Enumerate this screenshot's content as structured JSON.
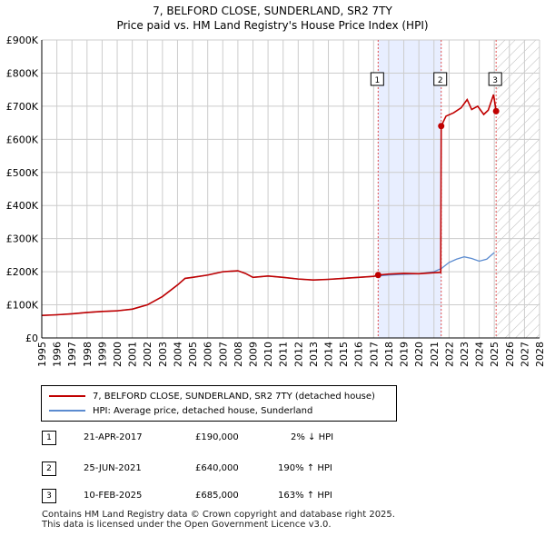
{
  "title_line1": "7, BELFORD CLOSE, SUNDERLAND, SR2 7TY",
  "title_line2": "Price paid vs. HM Land Registry's House Price Index (HPI)",
  "colors": {
    "price": "#c00000",
    "hpi": "#5b8bd0",
    "shade": "#e8eeff",
    "marker_line": "#e05050",
    "grid": "#cccccc"
  },
  "chart_data": {
    "type": "line",
    "xlim": [
      1995,
      2028
    ],
    "ylim": [
      0,
      900000
    ],
    "x_ticks": [
      "1995",
      "1996",
      "1997",
      "1998",
      "1999",
      "2000",
      "2001",
      "2002",
      "2003",
      "2004",
      "2005",
      "2006",
      "2007",
      "2008",
      "2009",
      "2010",
      "2011",
      "2012",
      "2013",
      "2014",
      "2015",
      "2016",
      "2017",
      "2018",
      "2019",
      "2020",
      "2021",
      "2022",
      "2023",
      "2024",
      "2025",
      "2026",
      "2027",
      "2028"
    ],
    "y_ticks": [
      {
        "value": 0,
        "label": "£0"
      },
      {
        "value": 100000,
        "label": "£100K"
      },
      {
        "value": 200000,
        "label": "£200K"
      },
      {
        "value": 300000,
        "label": "£300K"
      },
      {
        "value": 400000,
        "label": "£400K"
      },
      {
        "value": 500000,
        "label": "£500K"
      },
      {
        "value": 600000,
        "label": "£600K"
      },
      {
        "value": 700000,
        "label": "£700K"
      },
      {
        "value": 800000,
        "label": "£800K"
      },
      {
        "value": 900000,
        "label": "£900K"
      }
    ],
    "shaded_range": [
      2017.3,
      2021.5
    ],
    "future_hatch_from": 2025.12,
    "series": [
      {
        "name": "7, BELFORD CLOSE, SUNDERLAND, SR2 7TY (detached house)",
        "points": [
          [
            1995,
            68000
          ],
          [
            1996,
            70000
          ],
          [
            1997,
            73000
          ],
          [
            1998,
            77000
          ],
          [
            1999,
            80000
          ],
          [
            2000,
            82000
          ],
          [
            2001,
            87000
          ],
          [
            2002,
            100000
          ],
          [
            2003,
            125000
          ],
          [
            2004,
            160000
          ],
          [
            2004.5,
            180000
          ],
          [
            2005,
            183000
          ],
          [
            2006,
            190000
          ],
          [
            2007,
            200000
          ],
          [
            2008,
            203000
          ],
          [
            2008.5,
            195000
          ],
          [
            2009,
            183000
          ],
          [
            2010,
            187000
          ],
          [
            2011,
            183000
          ],
          [
            2012,
            178000
          ],
          [
            2013,
            175000
          ],
          [
            2014,
            177000
          ],
          [
            2015,
            180000
          ],
          [
            2016,
            183000
          ],
          [
            2017,
            186000
          ],
          [
            2017.3,
            190000
          ],
          [
            2018,
            193000
          ],
          [
            2019,
            195000
          ],
          [
            2020,
            194000
          ],
          [
            2021,
            197000
          ],
          [
            2021.45,
            198000
          ],
          [
            2021.48,
            640000
          ],
          [
            2021.8,
            670000
          ],
          [
            2022.3,
            680000
          ],
          [
            2022.8,
            695000
          ],
          [
            2023.2,
            720000
          ],
          [
            2023.5,
            690000
          ],
          [
            2023.9,
            700000
          ],
          [
            2024.3,
            675000
          ],
          [
            2024.6,
            688000
          ],
          [
            2024.95,
            735000
          ],
          [
            2025.12,
            685000
          ]
        ]
      },
      {
        "name": "HPI: Average price, detached house, Sunderland",
        "points": [
          [
            1995,
            68000
          ],
          [
            1996,
            70000
          ],
          [
            1997,
            73000
          ],
          [
            1998,
            77000
          ],
          [
            1999,
            80000
          ],
          [
            2000,
            82000
          ],
          [
            2001,
            87000
          ],
          [
            2002,
            100000
          ],
          [
            2003,
            125000
          ],
          [
            2004,
            160000
          ],
          [
            2004.5,
            180000
          ],
          [
            2005,
            183000
          ],
          [
            2006,
            190000
          ],
          [
            2007,
            200000
          ],
          [
            2008,
            203000
          ],
          [
            2008.5,
            195000
          ],
          [
            2009,
            183000
          ],
          [
            2010,
            187000
          ],
          [
            2011,
            183000
          ],
          [
            2012,
            178000
          ],
          [
            2013,
            175000
          ],
          [
            2014,
            177000
          ],
          [
            2015,
            180000
          ],
          [
            2016,
            183000
          ],
          [
            2017,
            186000
          ],
          [
            2018,
            190000
          ],
          [
            2019,
            192000
          ],
          [
            2020,
            194000
          ],
          [
            2021,
            200000
          ],
          [
            2021.5,
            210000
          ],
          [
            2022,
            228000
          ],
          [
            2022.5,
            238000
          ],
          [
            2023,
            245000
          ],
          [
            2023.5,
            240000
          ],
          [
            2024,
            232000
          ],
          [
            2024.5,
            238000
          ],
          [
            2025,
            258000
          ]
        ]
      }
    ],
    "sales": [
      {
        "label": "1",
        "x": 2017.3,
        "y": 190000
      },
      {
        "label": "2",
        "x": 2021.48,
        "y": 640000
      },
      {
        "label": "3",
        "x": 2025.12,
        "y": 685000
      }
    ]
  },
  "legend": {
    "price_label": "7, BELFORD CLOSE, SUNDERLAND, SR2 7TY (detached house)",
    "hpi_label": "HPI: Average price, detached house, Sunderland"
  },
  "transactions": [
    {
      "num": "1",
      "date": "21-APR-2017",
      "price": "£190,000",
      "hpi": "2% ↓ HPI"
    },
    {
      "num": "2",
      "date": "25-JUN-2021",
      "price": "£640,000",
      "hpi": "190% ↑ HPI"
    },
    {
      "num": "3",
      "date": "10-FEB-2025",
      "price": "£685,000",
      "hpi": "163% ↑ HPI"
    }
  ],
  "footer_line1": "Contains HM Land Registry data © Crown copyright and database right 2025.",
  "footer_line2": "This data is licensed under the Open Government Licence v3.0."
}
